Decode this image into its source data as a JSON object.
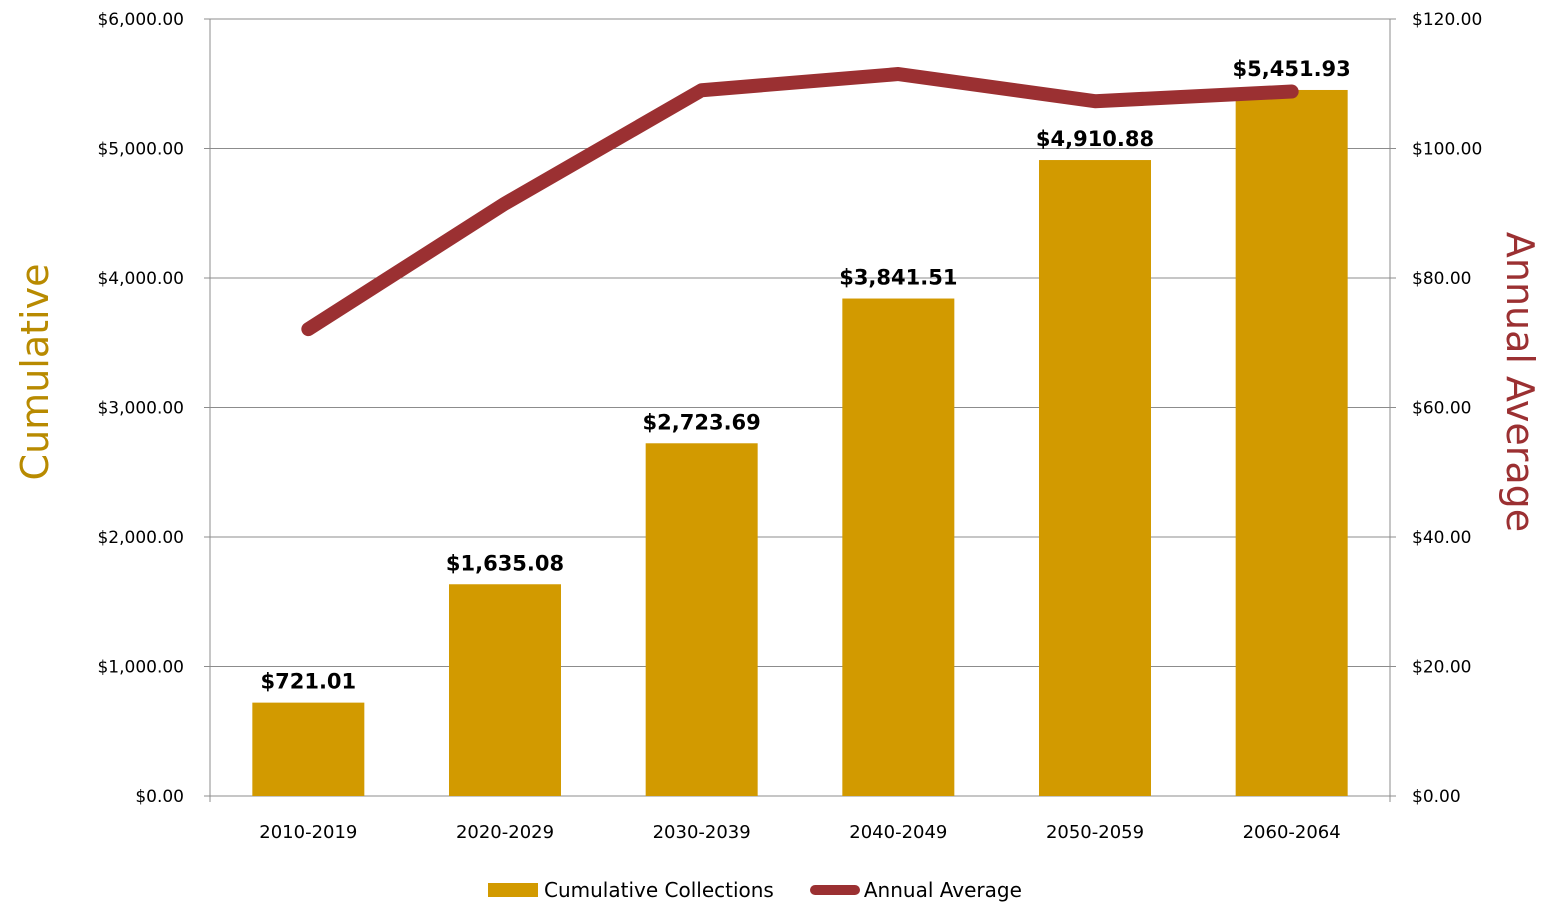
{
  "chart_data": {
    "type": "bar",
    "title": "",
    "categories": [
      "2010-2019",
      "2020-2029",
      "2030-2039",
      "2040-2049",
      "2050-2059",
      "2060-2064"
    ],
    "series": [
      {
        "name": "Cumulative Collections",
        "type": "bar",
        "axis": "left",
        "values": [
          721.01,
          1635.08,
          2723.69,
          3841.51,
          4910.88,
          5451.93
        ],
        "labels": [
          "$721.01",
          "$1,635.08",
          "$2,723.69",
          "$3,841.51",
          "$4,910.88",
          "$5,451.93"
        ],
        "color": "#D29A00"
      },
      {
        "name": "Annual Average",
        "type": "line",
        "axis": "right",
        "values": [
          72.1,
          91.5,
          109,
          111.5,
          107.3,
          108.8
        ],
        "color": "#9B3032"
      }
    ],
    "ylabel": "Cumulative",
    "ylabel_color": "#B88A00",
    "ylim": [
      0,
      6000
    ],
    "yticks": [
      "$0.00",
      "$1,000.00",
      "$2,000.00",
      "$3,000.00",
      "$4,000.00",
      "$5,000.00",
      "$6,000.00"
    ],
    "y2label": "Annual Average",
    "y2label_color": "#9B3032",
    "y2lim": [
      0,
      120
    ],
    "y2ticks": [
      "$0.00",
      "$20.00",
      "$40.00",
      "$60.00",
      "$80.00",
      "$100.00",
      "$120.00"
    ],
    "grid": true,
    "legend_position": "bottom"
  }
}
